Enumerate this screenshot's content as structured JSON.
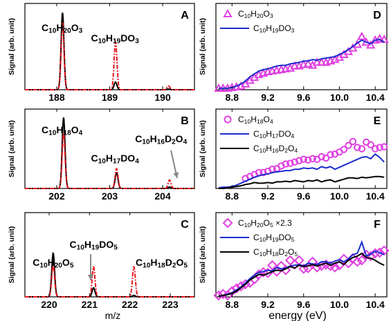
{
  "colors": {
    "black": "#000000",
    "red": "#e8141b",
    "magenta": "#e040e0",
    "blue": "#1a2ccc"
  },
  "x_axis_label_left": "m/z",
  "x_axis_label_right": "energy (eV)",
  "chart_data": [
    {
      "panel": "A",
      "type": "line",
      "ylabel": "Signal (arb. unit)",
      "xlim": [
        187.4,
        190.6
      ],
      "xticks": [
        "188",
        "189",
        "190"
      ],
      "ylim": [
        0,
        1.12
      ],
      "series": [
        {
          "color": "black",
          "style": "solid",
          "peaks": [
            [
              188.11,
              1.0
            ],
            [
              189.11,
              0.1
            ],
            [
              190.11,
              0.01
            ]
          ]
        },
        {
          "color": "red",
          "style": "dash-dot",
          "peaks": [
            [
              188.11,
              0.87
            ],
            [
              189.11,
              0.62
            ],
            [
              190.11,
              0.05
            ]
          ]
        }
      ],
      "annotations": [
        {
          "text": "C10H20O3",
          "near_x": 188.1
        },
        {
          "text": "C10H19DO3",
          "near_x": 189.1
        }
      ]
    },
    {
      "panel": "B",
      "type": "line",
      "ylabel": "Signal (arb. unit)",
      "xlim": [
        201.4,
        204.6
      ],
      "xticks": [
        "202",
        "203",
        "204"
      ],
      "ylim": [
        0,
        1.12
      ],
      "series": [
        {
          "color": "black",
          "style": "solid",
          "peaks": [
            [
              202.13,
              1.0
            ],
            [
              203.13,
              0.22
            ],
            [
              204.13,
              0.02
            ]
          ]
        },
        {
          "color": "red",
          "style": "dash-dot",
          "peaks": [
            [
              202.13,
              0.78
            ],
            [
              203.13,
              0.28
            ],
            [
              204.13,
              0.12
            ]
          ]
        }
      ],
      "annotations": [
        {
          "text": "C10H18O4",
          "near_x": 202.1
        },
        {
          "text": "C10H17DO4",
          "near_x": 203.1
        },
        {
          "text": "C10H16D2O4",
          "near_x": 204.1,
          "arrow": true
        }
      ]
    },
    {
      "panel": "C",
      "type": "line",
      "ylabel": "Signal (arb. unit)",
      "xlim": [
        219.4,
        223.6
      ],
      "xticks": [
        "220",
        "221",
        "222",
        "223"
      ],
      "ylim": [
        0,
        1.12
      ],
      "series": [
        {
          "color": "black",
          "style": "solid",
          "peaks": [
            [
              220.1,
              0.58
            ],
            [
              221.1,
              0.12
            ],
            [
              222.1,
              0.02
            ]
          ]
        },
        {
          "color": "red",
          "style": "dash-dot",
          "peaks": [
            [
              220.1,
              0.42
            ],
            [
              221.1,
              0.4
            ],
            [
              222.1,
              0.4
            ]
          ]
        }
      ],
      "annotations": [
        {
          "text": "C10H20O5",
          "near_x": 220.1
        },
        {
          "text": "C10H19DO5",
          "near_x": 221.1,
          "arrow": true
        },
        {
          "text": "C10H18D2O5",
          "near_x": 222.1
        }
      ]
    },
    {
      "panel": "D",
      "type": "line",
      "ylabel": "Signal (arb. unit)",
      "xlim": [
        8.62,
        10.53
      ],
      "xticks": [
        "8.8",
        "9.2",
        "9.6",
        "10.0",
        "10.4"
      ],
      "ylim": [
        0,
        1.2
      ],
      "legend": "top-left",
      "series": [
        {
          "name": "C10H20O3",
          "color": "magenta",
          "marker": "triangle",
          "x": [
            8.65,
            8.7,
            8.75,
            8.8,
            8.85,
            8.9,
            8.95,
            9.0,
            9.05,
            9.1,
            9.15,
            9.2,
            9.25,
            9.3,
            9.35,
            9.4,
            9.45,
            9.5,
            9.55,
            9.6,
            9.65,
            9.7,
            9.75,
            9.8,
            9.85,
            9.9,
            9.95,
            10.0,
            10.05,
            10.1,
            10.15,
            10.2,
            10.25,
            10.3,
            10.35,
            10.4,
            10.45,
            10.5
          ],
          "y": [
            0.02,
            0.02,
            0.02,
            0.03,
            0.04,
            0.05,
            0.08,
            0.13,
            0.17,
            0.21,
            0.23,
            0.25,
            0.26,
            0.27,
            0.28,
            0.29,
            0.3,
            0.33,
            0.33,
            0.35,
            0.36,
            0.34,
            0.38,
            0.38,
            0.38,
            0.4,
            0.42,
            0.45,
            0.49,
            0.53,
            0.58,
            0.63,
            0.74,
            0.66,
            0.62,
            0.69,
            0.71,
            0.7
          ]
        },
        {
          "name": "C10H19DO3",
          "color": "blue",
          "style": "solid",
          "x": [
            8.65,
            8.7,
            8.75,
            8.8,
            8.85,
            8.9,
            8.95,
            9.0,
            9.05,
            9.1,
            9.15,
            9.2,
            9.25,
            9.3,
            9.35,
            9.4,
            9.45,
            9.5,
            9.55,
            9.6,
            9.65,
            9.7,
            9.75,
            9.8,
            9.85,
            9.9,
            9.95,
            10.0,
            10.05,
            10.1,
            10.15,
            10.2,
            10.25,
            10.3,
            10.35,
            10.4,
            10.45,
            10.5
          ],
          "y": [
            0.02,
            0.02,
            0.02,
            0.03,
            0.05,
            0.08,
            0.12,
            0.18,
            0.22,
            0.26,
            0.28,
            0.29,
            0.31,
            0.33,
            0.34,
            0.34,
            0.36,
            0.37,
            0.38,
            0.4,
            0.4,
            0.42,
            0.41,
            0.43,
            0.44,
            0.45,
            0.46,
            0.49,
            0.52,
            0.56,
            0.6,
            0.65,
            0.69,
            0.66,
            0.64,
            0.69,
            0.7,
            0.66
          ]
        }
      ]
    },
    {
      "panel": "E",
      "type": "line",
      "ylabel": "Signal (arb. unit)",
      "xlim": [
        8.62,
        10.53
      ],
      "xticks": [
        "8.8",
        "9.2",
        "9.6",
        "10.0",
        "10.4"
      ],
      "ylim": [
        0,
        1.2
      ],
      "legend": "top-left",
      "series": [
        {
          "name": "C10H18O4",
          "color": "magenta",
          "marker": "circle",
          "x": [
            8.95,
            9.0,
            9.05,
            9.1,
            9.15,
            9.2,
            9.25,
            9.3,
            9.35,
            9.4,
            9.45,
            9.5,
            9.55,
            9.6,
            9.65,
            9.7,
            9.75,
            9.8,
            9.85,
            9.9,
            9.95,
            10.0,
            10.05,
            10.1,
            10.15,
            10.2,
            10.25,
            10.3,
            10.35,
            10.4,
            10.45,
            10.5
          ],
          "y": [
            0.15,
            0.18,
            0.21,
            0.24,
            0.24,
            0.26,
            0.29,
            0.3,
            0.34,
            0.37,
            0.38,
            0.4,
            0.42,
            0.44,
            0.43,
            0.45,
            0.44,
            0.48,
            0.46,
            0.51,
            0.52,
            0.55,
            0.59,
            0.65,
            0.71,
            0.62,
            0.6,
            0.7,
            0.66,
            0.6,
            0.62,
            0.63
          ]
        },
        {
          "name": "C10H17DO4",
          "color": "blue",
          "style": "solid",
          "x": [
            8.65,
            8.7,
            8.75,
            8.8,
            8.85,
            8.9,
            8.95,
            9.0,
            9.05,
            9.1,
            9.15,
            9.2,
            9.25,
            9.3,
            9.35,
            9.4,
            9.45,
            9.5,
            9.55,
            9.6,
            9.65,
            9.7,
            9.75,
            9.8,
            9.85,
            9.9,
            9.95,
            10.0,
            10.05,
            10.1,
            10.15,
            10.2,
            10.25,
            10.3,
            10.35,
            10.4,
            10.45,
            10.5
          ],
          "y": [
            0.01,
            0.02,
            0.02,
            0.03,
            0.05,
            0.08,
            0.11,
            0.14,
            0.17,
            0.19,
            0.21,
            0.22,
            0.24,
            0.25,
            0.26,
            0.27,
            0.27,
            0.29,
            0.29,
            0.31,
            0.3,
            0.31,
            0.29,
            0.33,
            0.31,
            0.33,
            0.29,
            0.32,
            0.35,
            0.38,
            0.41,
            0.44,
            0.47,
            0.48,
            0.45,
            0.52,
            0.47,
            0.4
          ]
        },
        {
          "name": "C10H16D2O4",
          "color": "black",
          "style": "solid",
          "x": [
            8.65,
            8.7,
            8.75,
            8.8,
            8.85,
            8.9,
            8.95,
            9.0,
            9.05,
            9.1,
            9.15,
            9.2,
            9.25,
            9.3,
            9.35,
            9.4,
            9.45,
            9.5,
            9.55,
            9.6,
            9.65,
            9.7,
            9.75,
            9.8,
            9.85,
            9.9,
            9.95,
            10.0,
            10.05,
            10.1,
            10.15,
            10.2,
            10.25,
            10.3,
            10.35,
            10.4,
            10.45,
            10.5
          ],
          "y": [
            0.0,
            0.0,
            0.01,
            0.02,
            0.03,
            0.04,
            0.06,
            0.07,
            0.09,
            0.08,
            0.08,
            0.09,
            0.08,
            0.1,
            0.1,
            0.11,
            0.1,
            0.12,
            0.11,
            0.1,
            0.12,
            0.11,
            0.13,
            0.1,
            0.12,
            0.13,
            0.1,
            0.12,
            0.14,
            0.16,
            0.16,
            0.15,
            0.17,
            0.16,
            0.17,
            0.18,
            0.18,
            0.17
          ]
        }
      ]
    },
    {
      "panel": "F",
      "type": "line",
      "ylabel": "Signal (arb. unit)",
      "xlim": [
        8.62,
        10.53
      ],
      "xticks": [
        "8.8",
        "9.2",
        "9.6",
        "10.0",
        "10.4"
      ],
      "ylim": [
        0,
        1.2
      ],
      "legend": "top-left",
      "series": [
        {
          "name": "C10H20O5 ×2.3",
          "color": "magenta",
          "marker": "diamond",
          "x": [
            8.65,
            8.7,
            8.75,
            8.8,
            8.85,
            8.9,
            8.95,
            9.0,
            9.05,
            9.1,
            9.15,
            9.2,
            9.25,
            9.3,
            9.35,
            9.4,
            9.45,
            9.5,
            9.55,
            9.6,
            9.65,
            9.7,
            9.75,
            9.8,
            9.85,
            9.9,
            9.95,
            10.0,
            10.05,
            10.1,
            10.15,
            10.2,
            10.25,
            10.3,
            10.35,
            10.4,
            10.45,
            10.5
          ],
          "y": [
            0.02,
            0.04,
            0.02,
            0.08,
            0.12,
            0.15,
            0.18,
            0.2,
            0.25,
            0.32,
            0.35,
            0.34,
            0.45,
            0.36,
            0.44,
            0.38,
            0.52,
            0.46,
            0.52,
            0.4,
            0.41,
            0.5,
            0.42,
            0.44,
            0.46,
            0.44,
            0.42,
            0.45,
            0.54,
            0.48,
            0.55,
            0.5,
            0.52,
            0.6,
            0.58,
            0.62,
            0.63,
            0.66
          ]
        },
        {
          "name": "C10H19DO5",
          "color": "blue",
          "style": "solid",
          "x": [
            8.65,
            8.7,
            8.75,
            8.8,
            8.85,
            8.9,
            8.95,
            9.0,
            9.05,
            9.1,
            9.15,
            9.2,
            9.25,
            9.3,
            9.35,
            9.4,
            9.45,
            9.5,
            9.55,
            9.6,
            9.65,
            9.7,
            9.75,
            9.8,
            9.85,
            9.9,
            9.95,
            10.0,
            10.05,
            10.1,
            10.15,
            10.2,
            10.25,
            10.3,
            10.35,
            10.4,
            10.45,
            10.5
          ],
          "y": [
            0.01,
            0.02,
            0.04,
            0.06,
            0.1,
            0.14,
            0.2,
            0.26,
            0.31,
            0.35,
            0.36,
            0.38,
            0.37,
            0.42,
            0.4,
            0.41,
            0.44,
            0.45,
            0.46,
            0.44,
            0.48,
            0.47,
            0.46,
            0.5,
            0.5,
            0.48,
            0.51,
            0.53,
            0.5,
            0.54,
            0.6,
            0.62,
            0.78,
            0.58,
            0.61,
            0.65,
            0.63,
            0.6
          ]
        },
        {
          "name": "C10H18D2O5",
          "color": "black",
          "style": "solid",
          "x": [
            8.65,
            8.7,
            8.75,
            8.8,
            8.85,
            8.9,
            8.95,
            9.0,
            9.05,
            9.1,
            9.15,
            9.2,
            9.25,
            9.3,
            9.35,
            9.4,
            9.45,
            9.5,
            9.55,
            9.6,
            9.65,
            9.7,
            9.75,
            9.8,
            9.85,
            9.9,
            9.95,
            10.0,
            10.05,
            10.1,
            10.15,
            10.2,
            10.25,
            10.3,
            10.35,
            10.4,
            10.45,
            10.5
          ],
          "y": [
            0.01,
            0.02,
            0.03,
            0.05,
            0.08,
            0.13,
            0.18,
            0.24,
            0.28,
            0.32,
            0.31,
            0.33,
            0.36,
            0.38,
            0.37,
            0.4,
            0.43,
            0.41,
            0.45,
            0.43,
            0.44,
            0.46,
            0.44,
            0.46,
            0.48,
            0.45,
            0.48,
            0.5,
            0.46,
            0.52,
            0.56,
            0.58,
            0.62,
            0.56,
            0.55,
            0.52,
            0.48,
            0.45
          ]
        }
      ]
    }
  ]
}
